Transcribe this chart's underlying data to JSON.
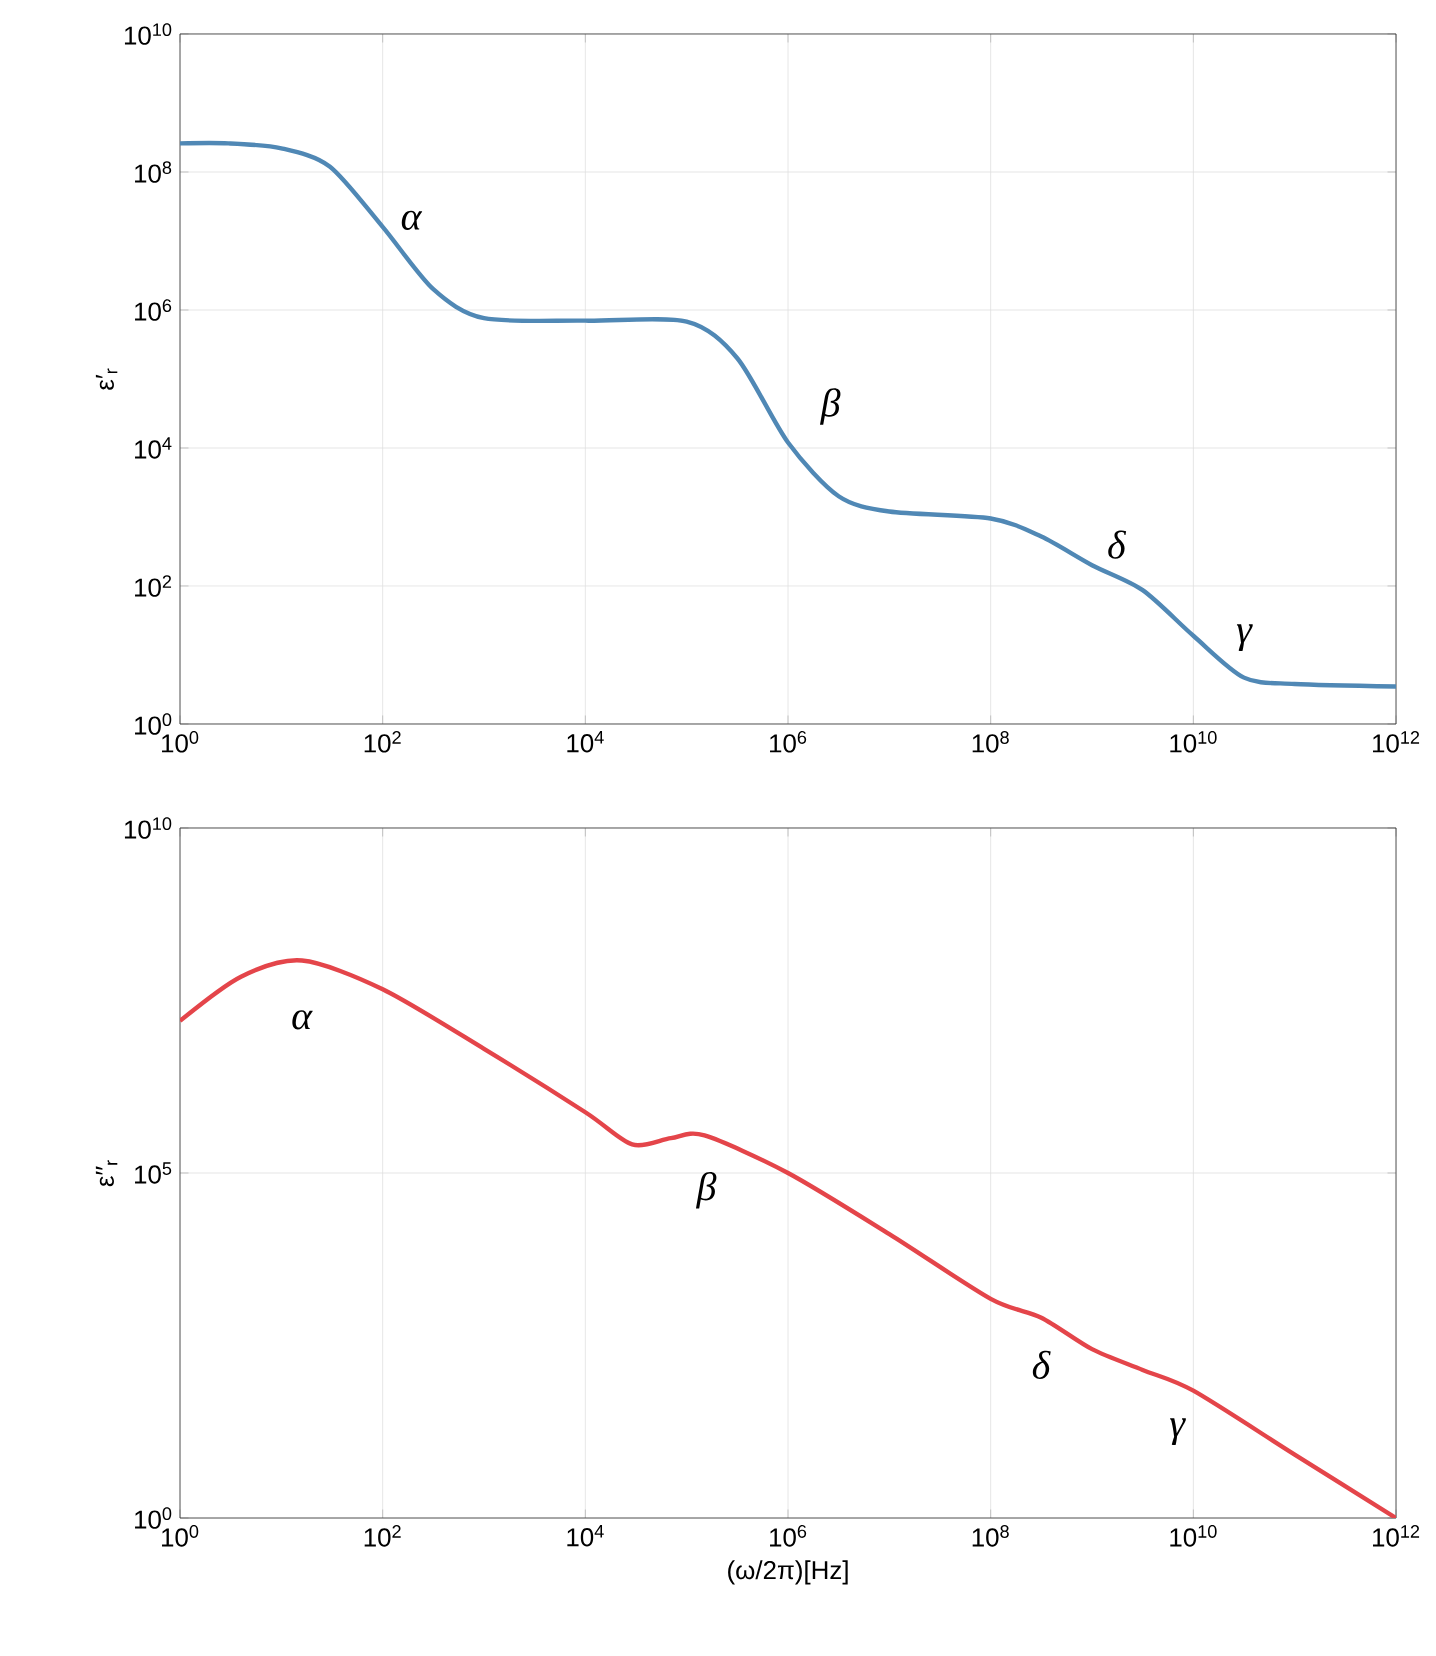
{
  "chart_data": [
    {
      "type": "line",
      "log": "xy",
      "grid": true,
      "ylabel": "ε′$_{r}$",
      "xlim": [
        1,
        1000000000000.0
      ],
      "ylim": [
        1,
        10000000000.0
      ],
      "xticks": [
        {
          "value": 1,
          "label": "10$^{0}$"
        },
        {
          "value": 100,
          "label": "10$^{2}$"
        },
        {
          "value": 10000,
          "label": "10$^{4}$"
        },
        {
          "value": 1000000,
          "label": "10$^{6}$"
        },
        {
          "value": 100000000,
          "label": "10$^{8}$"
        },
        {
          "value": 10000000000,
          "label": "10$^{10}$"
        },
        {
          "value": 1000000000000,
          "label": "10$^{12}$"
        }
      ],
      "yticks": [
        {
          "value": 1,
          "label": "10$^{0}$"
        },
        {
          "value": 100,
          "label": "10$^{2}$"
        },
        {
          "value": 10000,
          "label": "10$^{4}$"
        },
        {
          "value": 1000000,
          "label": "10$^{6}$"
        },
        {
          "value": 100000000,
          "label": "10$^{8}$"
        },
        {
          "value": 10000000000,
          "label": "10$^{10}$"
        }
      ],
      "series": [
        {
          "color": "#5088b5",
          "x": [
            1,
            3,
            10,
            30,
            100,
            316,
            1000,
            10000,
            100000,
            316000,
            1000000,
            3160000,
            10000000,
            100000000,
            316000000,
            1000000000,
            3160000000,
            10000000000,
            31600000000,
            100000000000,
            1000000000000
          ],
          "values": [
            260000000.0,
            260000000.0,
            220000000.0,
            120000000.0,
            16000000.0,
            2000000.0,
            760000.0,
            700000.0,
            680000.0,
            200000.0,
            12000.0,
            2000.0,
            1200.0,
            950.0,
            520.0,
            200.0,
            87,
            19,
            4.7,
            3.8,
            3.5
          ]
        }
      ],
      "annotations": [
        "α",
        "β",
        "δ",
        "γ"
      ]
    },
    {
      "type": "line",
      "log": "xy",
      "grid": true,
      "ylabel": "ε′′$_{r}$",
      "xlabel": "(ω/2π)[Hz]",
      "xlim": [
        1,
        1000000000000.0
      ],
      "ylim": [
        1,
        10000000000.0
      ],
      "xticks": [
        {
          "value": 1,
          "label": "10$^{0}$"
        },
        {
          "value": 100,
          "label": "10$^{2}$"
        },
        {
          "value": 10000,
          "label": "10$^{4}$"
        },
        {
          "value": 1000000,
          "label": "10$^{6}$"
        },
        {
          "value": 100000000,
          "label": "10$^{8}$"
        },
        {
          "value": 10000000000,
          "label": "10$^{10}$"
        },
        {
          "value": 1000000000000,
          "label": "10$^{12}$"
        }
      ],
      "yticks": [
        {
          "value": 1,
          "label": "10$^{0}$"
        },
        {
          "value": 100000,
          "label": "10$^{5}$"
        },
        {
          "value": 10000000000,
          "label": "10$^{10}$"
        }
      ],
      "series": [
        {
          "color": "#e4454a",
          "x": [
            1,
            4,
            16,
            100,
            1000,
            10000,
            29000,
            70000,
            150000,
            1000000,
            10000000,
            100000000,
            316000000,
            1000000000,
            3160000000,
            10000000000,
            100000000000,
            1000000000000
          ],
          "values": [
            16000000.0,
            70000000.0,
            120000000.0,
            46000000.0,
            6300000.0,
            760000.0,
            260000.0,
            320000.0,
            350000.0,
            100000.0,
            13000.0,
            1500.0,
            800.0,
            280.0,
            140.0,
            70,
            8.3,
            1
          ]
        }
      ],
      "annotations": [
        "α",
        "β",
        "δ",
        "γ"
      ]
    }
  ]
}
